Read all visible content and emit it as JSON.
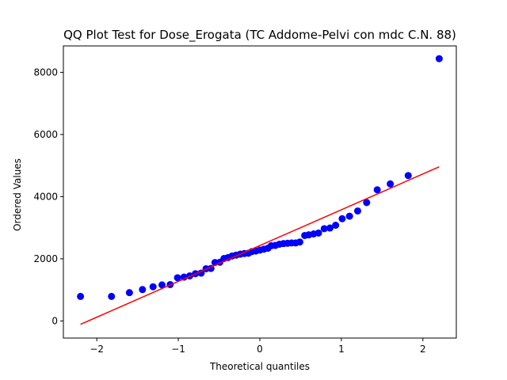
{
  "chart_data": {
    "type": "scatter",
    "title": "QQ Plot Test for Dose_Erogata (TC Addome-Pelvi con mdc C.N. 88)",
    "xlabel": "Theoretical quantiles",
    "ylabel": "Ordered Values",
    "xlim": [
      -2.41,
      2.41
    ],
    "ylim": [
      -550,
      8850
    ],
    "xticks": [
      -2,
      -1,
      0,
      1,
      2
    ],
    "xtick_labels": [
      "−2",
      "−1",
      "0",
      "1",
      "2"
    ],
    "yticks": [
      0,
      2000,
      4000,
      6000,
      8000
    ],
    "ytick_labels": [
      "0",
      "2000",
      "4000",
      "6000",
      "8000"
    ],
    "grid": false,
    "colors": {
      "points": "#0000ff",
      "fit_line": "#ff0000"
    },
    "series": [
      {
        "kind": "points",
        "x": [
          -2.2,
          -1.82,
          -1.6,
          -1.44,
          -1.31,
          -1.2,
          -1.1,
          -1.01,
          -0.93,
          -0.86,
          -0.79,
          -0.72,
          -0.66,
          -0.6,
          -0.55,
          -0.49,
          -0.44,
          -0.39,
          -0.34,
          -0.29,
          -0.24,
          -0.19,
          -0.14,
          -0.1,
          -0.05,
          0.0,
          0.05,
          0.1,
          0.14,
          0.19,
          0.24,
          0.29,
          0.34,
          0.39,
          0.44,
          0.49,
          0.55,
          0.6,
          0.66,
          0.72,
          0.79,
          0.86,
          0.93,
          1.01,
          1.1,
          1.2,
          1.31,
          1.44,
          1.6,
          1.82,
          2.2
        ],
        "y": [
          790,
          790,
          910,
          1010,
          1100,
          1160,
          1170,
          1390,
          1410,
          1450,
          1520,
          1540,
          1680,
          1690,
          1880,
          1890,
          2010,
          2040,
          2090,
          2120,
          2150,
          2170,
          2180,
          2230,
          2250,
          2280,
          2310,
          2340,
          2420,
          2430,
          2470,
          2490,
          2500,
          2510,
          2510,
          2540,
          2750,
          2770,
          2800,
          2830,
          2970,
          2990,
          3080,
          3290,
          3370,
          3540,
          3810,
          4220,
          4410,
          4680,
          8440
        ]
      },
      {
        "kind": "fit-line",
        "x": [
          -2.2,
          2.2
        ],
        "y": [
          -110,
          4960
        ]
      }
    ]
  }
}
